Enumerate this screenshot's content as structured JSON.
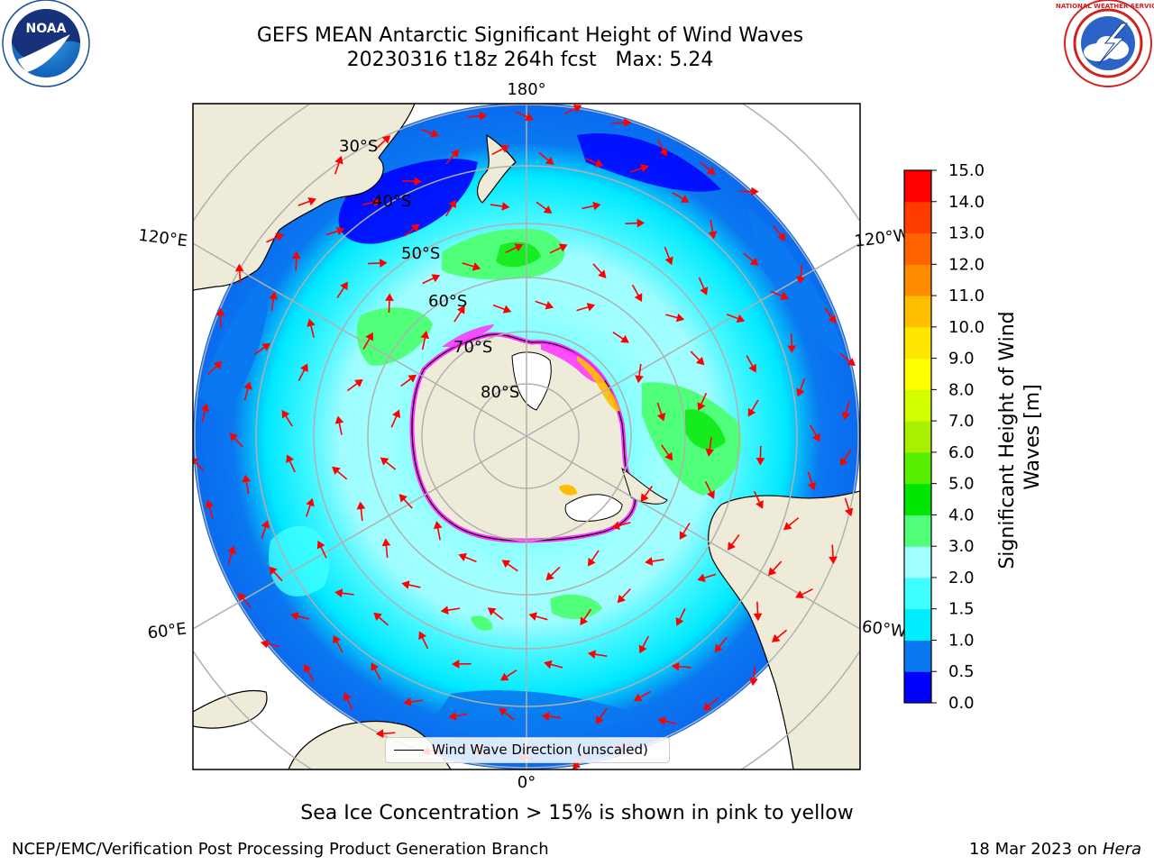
{
  "header": {
    "title": "GEFS MEAN Antarctic Significant Height of Wind Waves",
    "subtitle": "20230316 t18z 264h fcst   Max: 5.24"
  },
  "logos": {
    "left": {
      "name": "noaa-logo",
      "text": "NOAA",
      "ring_text": "NATIONAL OCEANIC AND ATMOSPHERIC ADMINISTRATION · U.S. DEPARTMENT OF COMMERCE"
    },
    "right": {
      "name": "national-weather-service-logo",
      "ring_text": "NATIONAL WEATHER SERVICE"
    }
  },
  "map": {
    "projection": "south-polar-stereographic",
    "longitude_labels": {
      "top": "180°",
      "bottom": "0°",
      "upper_left": "120°E",
      "upper_right": "120°W",
      "lower_left": "60°E",
      "lower_right": "60°W"
    },
    "latitude_labels": [
      "30°S",
      "40°S",
      "50°S",
      "60°S",
      "70°S",
      "80°S"
    ],
    "legend_label": "Wind Wave Direction (unscaled)",
    "colors": {
      "land": "#efebd9",
      "ice_free_land": "#ffffff",
      "arrow": "#ff0000",
      "gridline": "#b0b0b0",
      "sea_ice_pink": "#ff33ff"
    }
  },
  "colorbar": {
    "title_line1": "Significant Height of Wind",
    "title_line2": "Waves [m]",
    "ticks": [
      "0.0",
      "0.5",
      "1.0",
      "1.5",
      "2.0",
      "3.0",
      "4.0",
      "5.0",
      "6.0",
      "7.0",
      "8.0",
      "9.0",
      "10.0",
      "11.0",
      "12.0",
      "13.0",
      "14.0",
      "15.0"
    ],
    "colors": [
      "#0000ff",
      "#0a78f0",
      "#00ecff",
      "#40ffff",
      "#a0ffff",
      "#50ff7a",
      "#00e600",
      "#58f000",
      "#a8f000",
      "#d2ff00",
      "#ffff00",
      "#ffe600",
      "#ffbe00",
      "#ff8c00",
      "#ff6400",
      "#ff3c00",
      "#ff0000"
    ]
  },
  "footer": {
    "caption": "Sea Ice Concentration > 15% is shown in pink to yellow",
    "credit": "NCEP/EMC/Verification Post Processing Product Generation Branch",
    "date": "18 Mar 2023 on",
    "machine": "Hera"
  }
}
